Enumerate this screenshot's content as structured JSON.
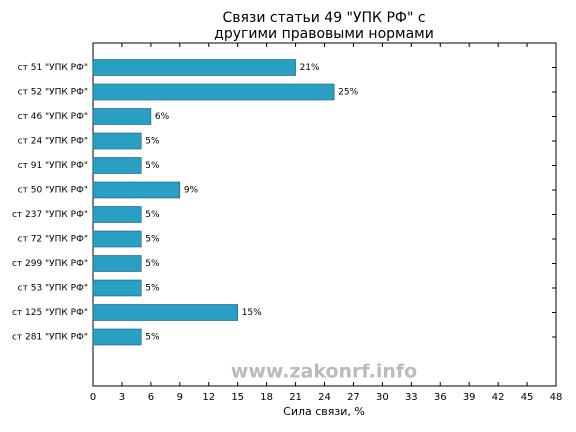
{
  "chart_data": {
    "type": "barh",
    "title": [
      "Связи статьи 49 \"УПК РФ\" с",
      "другими правовыми нормами"
    ],
    "categories": [
      "ст 51 \"УПК РФ\"",
      "ст 52 \"УПК РФ\"",
      "ст 46 \"УПК РФ\"",
      "ст 24 \"УПК РФ\"",
      "ст 91 \"УПК РФ\"",
      "ст 50 \"УПК РФ\"",
      "ст 237 \"УПК РФ\"",
      "ст 72 \"УПК РФ\"",
      "ст 299 \"УПК РФ\"",
      "ст 53 \"УПК РФ\"",
      "ст 125 \"УПК РФ\"",
      "ст 281 \"УПК РФ\""
    ],
    "values": [
      21,
      25,
      6,
      5,
      5,
      9,
      5,
      5,
      5,
      5,
      15,
      5
    ],
    "value_labels": [
      "21%",
      "25%",
      "6%",
      "5%",
      "5%",
      "9%",
      "5%",
      "5%",
      "5%",
      "5%",
      "15%",
      "5%"
    ],
    "color": "#2a9fc4",
    "xlabel": "Сила связи, %",
    "xlim": [
      0,
      48
    ],
    "xticks": [
      0,
      3,
      6,
      9,
      12,
      15,
      18,
      21,
      24,
      27,
      30,
      33,
      36,
      39,
      42,
      45,
      48
    ],
    "watermark": "www.zakonrf.info"
  }
}
